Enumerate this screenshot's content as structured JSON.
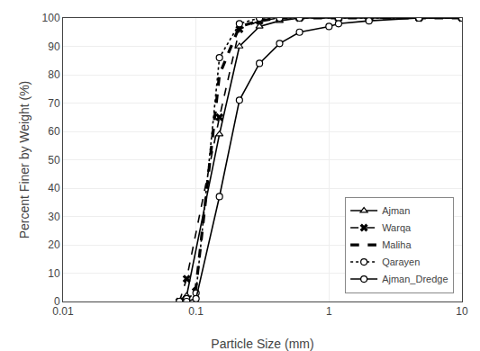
{
  "chart_data": {
    "type": "line",
    "xlabel": "Particle Size (mm)",
    "ylabel": "Percent Finer by Weight (%)",
    "log": "x",
    "xlim": [
      0.01,
      10
    ],
    "ylim": [
      0,
      100
    ],
    "xticks": [
      0.01,
      0.1,
      1,
      10
    ],
    "yticks": [
      0,
      10,
      20,
      30,
      40,
      50,
      60,
      70,
      80,
      90,
      100
    ],
    "grid": true,
    "legend": "lower right",
    "series": [
      {
        "name": "Ajman",
        "color": "#000000",
        "marker": "triangle-up",
        "line_style": "solid",
        "x": [
          0.075,
          0.085,
          0.15,
          0.212,
          0.3,
          0.425,
          0.6,
          1.18,
          2.0,
          4.75,
          10.0
        ],
        "values": [
          0,
          2,
          59,
          90,
          97,
          99,
          100,
          100,
          100,
          100,
          100
        ]
      },
      {
        "name": "Warqa",
        "color": "#000000",
        "marker": "x",
        "line_style": "dash",
        "x": [
          0.075,
          0.085,
          0.15,
          0.212,
          0.3,
          0.425,
          0.6,
          1.18,
          2.0,
          4.75,
          10.0
        ],
        "values": [
          0,
          8,
          65,
          96,
          99,
          100,
          100,
          100,
          100,
          100,
          100
        ]
      },
      {
        "name": "Maliha",
        "color": "#000000",
        "marker": "none",
        "line_style": "dash",
        "x": [
          0.075,
          0.085,
          0.1,
          0.15,
          0.212,
          0.3,
          0.425,
          0.6,
          1.18,
          2.0,
          10.0
        ],
        "values": [
          0,
          2,
          5,
          80,
          97,
          99,
          100,
          100,
          100,
          100,
          100
        ]
      },
      {
        "name": "Qarayen",
        "color": "#000000",
        "marker": "circle",
        "line_style": "dot",
        "x": [
          0.075,
          0.085,
          0.1,
          0.15,
          0.212,
          0.3,
          0.425,
          0.6,
          1.18,
          2.0,
          10.0
        ],
        "values": [
          0,
          1,
          3,
          86,
          98,
          100,
          100,
          100,
          100,
          100,
          100
        ]
      },
      {
        "name": "Ajman_Dredge",
        "color": "#000000",
        "marker": "circle",
        "line_style": "solid",
        "x": [
          0.075,
          0.085,
          0.1,
          0.15,
          0.212,
          0.3,
          0.425,
          0.6,
          1.0,
          1.18,
          2.0,
          4.75,
          10.0
        ],
        "values": [
          0,
          0,
          1,
          37,
          71,
          84,
          91,
          95,
          97,
          98,
          99,
          100,
          100
        ]
      }
    ]
  }
}
